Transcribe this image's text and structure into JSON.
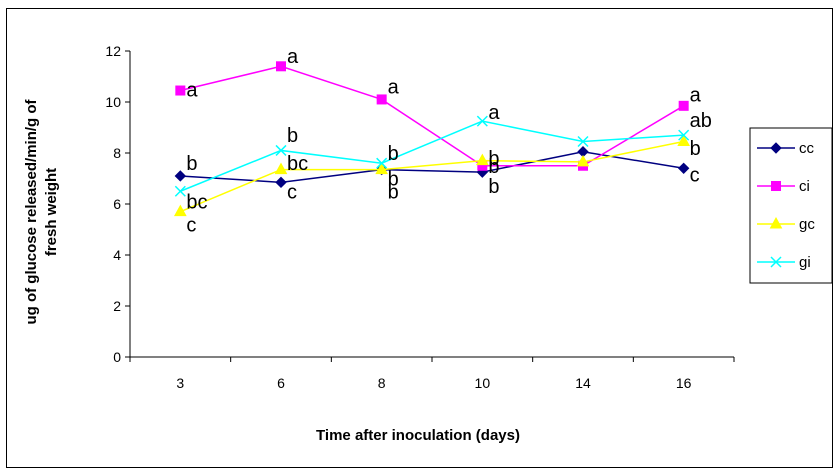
{
  "chart_data": {
    "type": "line",
    "title": "",
    "xlabel": "Time after inoculation (days)",
    "ylabel_lines": [
      "ug of glucose released/min/g of",
      "fresh weight"
    ],
    "categories": [
      "3",
      "6",
      "8",
      "10",
      "14",
      "16"
    ],
    "ylim": [
      0,
      12
    ],
    "yticks": [
      "0",
      "2",
      "4",
      "6",
      "8",
      "10",
      "12"
    ],
    "grid": false,
    "legend_position": "right",
    "series": [
      {
        "name": "cc",
        "color": "#000080",
        "marker": "diamond",
        "values": [
          7.1,
          6.85,
          7.35,
          7.25,
          8.05,
          7.4
        ]
      },
      {
        "name": "ci",
        "color": "#ff00ff",
        "marker": "square",
        "values": [
          10.45,
          11.4,
          10.1,
          7.5,
          7.5,
          9.85
        ]
      },
      {
        "name": "gc",
        "color": "#ffff00",
        "marker": "triangle",
        "values": [
          5.7,
          7.35,
          7.35,
          7.7,
          7.65,
          8.45
        ]
      },
      {
        "name": "gi",
        "color": "#00ffff",
        "marker": "x",
        "values": [
          6.5,
          8.1,
          7.6,
          9.25,
          8.45,
          8.7
        ]
      }
    ],
    "annotations": [
      {
        "text": "a",
        "x": "3",
        "y": 10.5
      },
      {
        "text": "b",
        "x": "3",
        "y": 7.6
      },
      {
        "text": "bc",
        "x": "3",
        "y": 6.1
      },
      {
        "text": "c",
        "x": "3",
        "y": 5.2
      },
      {
        "text": "a",
        "x": "6",
        "y": 11.8
      },
      {
        "text": "b",
        "x": "6",
        "y": 8.7
      },
      {
        "text": "bc",
        "x": "6",
        "y": 7.6
      },
      {
        "text": "c",
        "x": "6",
        "y": 6.5
      },
      {
        "text": "a",
        "x": "8",
        "y": 10.6
      },
      {
        "text": "b",
        "x": "8",
        "y": 8.0
      },
      {
        "text": "b",
        "x": "8",
        "y": 7.0
      },
      {
        "text": "b",
        "x": "8",
        "y": 6.5
      },
      {
        "text": "a",
        "x": "10",
        "y": 9.6
      },
      {
        "text": "b",
        "x": "10",
        "y": 7.8
      },
      {
        "text": "b",
        "x": "10",
        "y": 7.5
      },
      {
        "text": "b",
        "x": "10",
        "y": 6.7
      },
      {
        "text": "a",
        "x": "16",
        "y": 10.3
      },
      {
        "text": "ab",
        "x": "16",
        "y": 9.3
      },
      {
        "text": "b",
        "x": "16",
        "y": 8.2
      },
      {
        "text": "c",
        "x": "16",
        "y": 7.15
      }
    ]
  }
}
